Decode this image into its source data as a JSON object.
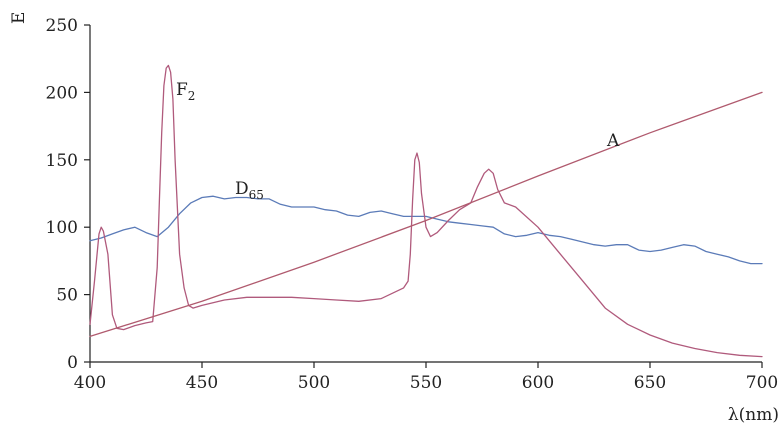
{
  "chart_data": {
    "type": "line",
    "xlabel": "λ(nm)",
    "ylabel": "E",
    "xlim": [
      400,
      700
    ],
    "ylim": [
      0,
      250
    ],
    "x_ticks": [
      400,
      450,
      500,
      550,
      600,
      650,
      700
    ],
    "y_ticks": [
      0,
      50,
      100,
      150,
      200,
      250
    ],
    "grid": false,
    "colors": {
      "D65": "#5b7bb8",
      "F2": "#b05a7c",
      "A": "#b05a6e"
    },
    "series": [
      {
        "name": "D65",
        "label_main": "D",
        "label_sub": "65",
        "x": [
          400,
          405,
          410,
          415,
          420,
          425,
          430,
          435,
          440,
          445,
          450,
          455,
          460,
          465,
          470,
          475,
          480,
          485,
          490,
          495,
          500,
          505,
          510,
          515,
          520,
          525,
          530,
          535,
          540,
          545,
          550,
          555,
          560,
          565,
          570,
          575,
          580,
          585,
          590,
          595,
          600,
          605,
          610,
          615,
          620,
          625,
          630,
          635,
          640,
          645,
          650,
          655,
          660,
          665,
          670,
          675,
          680,
          685,
          690,
          695,
          700
        ],
        "y": [
          90,
          92,
          95,
          98,
          100,
          96,
          93,
          100,
          110,
          118,
          122,
          123,
          121,
          122,
          122,
          121,
          121,
          117,
          115,
          115,
          115,
          113,
          112,
          109,
          108,
          111,
          112,
          110,
          108,
          108,
          108,
          106,
          104,
          103,
          102,
          101,
          100,
          95,
          93,
          94,
          96,
          94,
          93,
          91,
          89,
          87,
          86,
          87,
          87,
          83,
          82,
          83,
          85,
          87,
          86,
          82,
          80,
          78,
          75,
          73,
          73
        ]
      },
      {
        "name": "F2",
        "label_main": "F",
        "label_sub": "2",
        "x": [
          400,
          402,
          404,
          405,
          406,
          408,
          410,
          412,
          415,
          420,
          425,
          428,
          430,
          431,
          432,
          433,
          434,
          435,
          436,
          437,
          438,
          440,
          442,
          444,
          446,
          450,
          460,
          470,
          480,
          490,
          500,
          510,
          520,
          530,
          540,
          542,
          543,
          544,
          545,
          546,
          547,
          548,
          550,
          552,
          555,
          560,
          565,
          570,
          573,
          576,
          578,
          580,
          582,
          585,
          590,
          600,
          610,
          620,
          630,
          640,
          650,
          660,
          670,
          680,
          690,
          700
        ],
        "y": [
          28,
          60,
          95,
          100,
          97,
          80,
          35,
          25,
          24,
          27,
          29,
          30,
          70,
          120,
          170,
          205,
          218,
          220,
          215,
          195,
          150,
          80,
          55,
          42,
          40,
          42,
          46,
          48,
          48,
          48,
          47,
          46,
          45,
          47,
          55,
          60,
          80,
          120,
          150,
          155,
          148,
          125,
          100,
          93,
          96,
          105,
          113,
          118,
          130,
          140,
          143,
          140,
          128,
          118,
          115,
          100,
          80,
          60,
          40,
          28,
          20,
          14,
          10,
          7,
          5,
          4
        ]
      },
      {
        "name": "A",
        "label_main": "A",
        "label_sub": "",
        "x": [
          400,
          450,
          500,
          550,
          600,
          650,
          700
        ],
        "y": [
          19,
          45,
          74,
          105,
          138,
          170,
          200
        ]
      }
    ]
  }
}
